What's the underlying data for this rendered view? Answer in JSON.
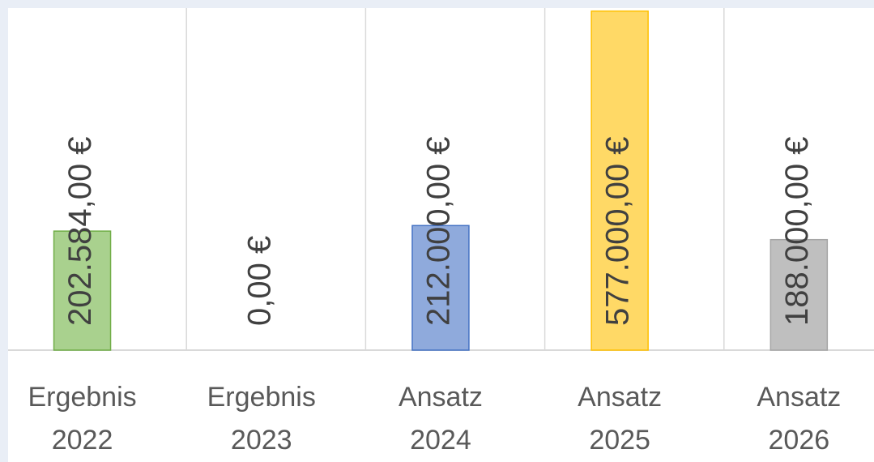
{
  "chart_data": {
    "type": "bar",
    "categories": [
      [
        "Ergebnis",
        "2022"
      ],
      [
        "Ergebnis",
        "2023"
      ],
      [
        "Ansatz",
        "2024"
      ],
      [
        "Ansatz",
        "2025"
      ],
      [
        "Ansatz",
        "2026"
      ]
    ],
    "values": [
      202584,
      0,
      212000,
      577000,
      188000
    ],
    "value_labels": [
      "202.584,00 €",
      "0,00 €",
      "212.000,00 €",
      "577.000,00 €",
      "188.000,00 €"
    ],
    "colors": [
      "#a9d18e",
      "#a9d18e",
      "#8faadc",
      "#ffd966",
      "#bfbfbf"
    ],
    "ylim": [
      0,
      600000
    ]
  }
}
